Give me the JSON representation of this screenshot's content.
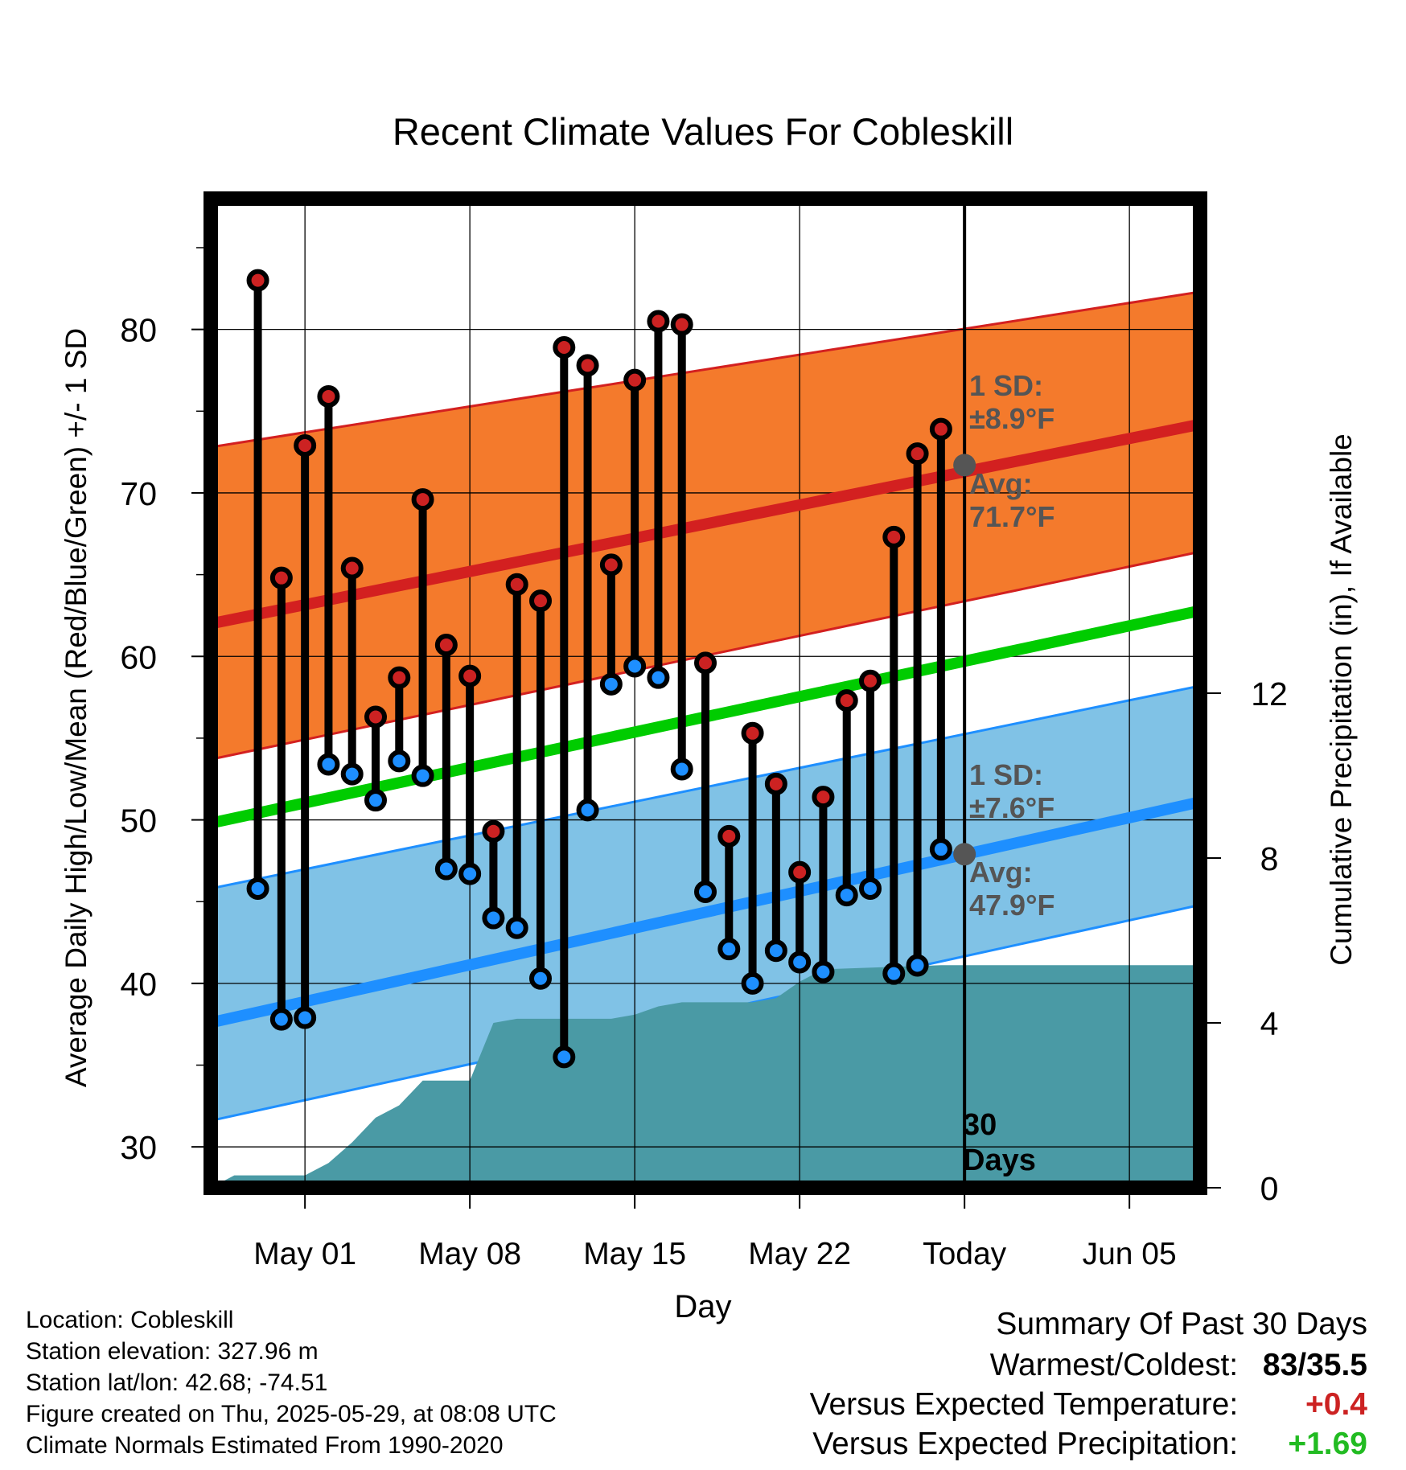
{
  "chart_data": {
    "type": "line",
    "title": "Recent Climate Values For Cobleskill",
    "xlabel": "Day",
    "ylabel": "Average Daily High/Low/Mean (Red/Blue/Green) +/- 1 SD",
    "y2label": "Cumulative Precipitation (in), If Available",
    "xlim": [
      "2025-04-27",
      "2025-06-08"
    ],
    "ylim": [
      27.5,
      88
    ],
    "y2lim": [
      0,
      24
    ],
    "x_ticks": [
      {
        "date": "2025-05-01",
        "label": "May 01"
      },
      {
        "date": "2025-05-08",
        "label": "May 08"
      },
      {
        "date": "2025-05-15",
        "label": "May 15"
      },
      {
        "date": "2025-05-22",
        "label": "May 22"
      },
      {
        "date": "2025-05-29",
        "label": "Today"
      },
      {
        "date": "2025-06-05",
        "label": "Jun 05"
      }
    ],
    "y_ticks": [
      30,
      40,
      50,
      60,
      70,
      80
    ],
    "y2_ticks": [
      0,
      4,
      8,
      12
    ],
    "grid": true,
    "today": "2025-05-29",
    "today_label": [
      "30",
      "Days"
    ],
    "dates": [
      "2025-04-30",
      "2025-05-01",
      "2025-05-02",
      "2025-05-03",
      "2025-05-04",
      "2025-05-05",
      "2025-05-06",
      "2025-05-07",
      "2025-05-08",
      "2025-05-09",
      "2025-05-10",
      "2025-05-11",
      "2025-05-12",
      "2025-05-13",
      "2025-05-14",
      "2025-05-15",
      "2025-05-16",
      "2025-05-17",
      "2025-05-18",
      "2025-05-19",
      "2025-05-20",
      "2025-05-21",
      "2025-05-22",
      "2025-05-23",
      "2025-05-24",
      "2025-05-25",
      "2025-05-26",
      "2025-05-27",
      "2025-05-28",
      "2025-05-29"
    ],
    "series": [
      {
        "name": "High",
        "color": "#cc2222",
        "values": [
          64.8,
          72.9,
          75.9,
          65.4,
          56.3,
          58.7,
          69.6,
          60.7,
          58.8,
          49.3,
          64.4,
          63.4,
          78.9,
          77.8,
          65.6,
          76.9,
          80.5,
          80.3,
          59.6,
          49.0,
          55.3,
          52.2,
          46.8,
          51.4,
          57.3,
          58.5,
          67.3,
          72.4,
          73.9,
          null
        ]
      },
      {
        "name": "Low",
        "color": "#1e8fff",
        "values": [
          37.8,
          37.9,
          53.4,
          52.8,
          51.2,
          53.6,
          52.7,
          47.0,
          46.7,
          44.0,
          43.4,
          40.3,
          35.5,
          50.6,
          58.3,
          59.4,
          58.7,
          53.1,
          45.6,
          42.1,
          40.0,
          42.0,
          41.3,
          40.7,
          45.4,
          45.8,
          40.6,
          41.1,
          48.2,
          null
        ]
      }
    ],
    "first_day": {
      "date": "2025-04-29",
      "high": 83.0,
      "low": 45.8
    },
    "normals": {
      "high_avg": {
        "start": 62.0,
        "end": 74.2,
        "color": "#d32020"
      },
      "high_sd": {
        "start": [
          53.7,
          72.8
        ],
        "end": [
          66.4,
          82.3
        ],
        "color": "#f47a2c"
      },
      "low_avg": {
        "start": 37.6,
        "end": 51.1,
        "color": "#1e8fff"
      },
      "low_sd": {
        "start": [
          31.6,
          45.8
        ],
        "end": [
          44.8,
          58.2
        ],
        "color": "#80c2e6"
      },
      "mean_avg": {
        "start": 49.8,
        "end": 62.8,
        "color": "#00cc00"
      }
    },
    "today_marks": {
      "high": {
        "value": 71.7,
        "label_sd": [
          "1 SD:",
          "±8.9°F"
        ],
        "label_avg": [
          "Avg:",
          "71.7°F"
        ]
      },
      "low": {
        "value": 47.9,
        "label_sd": [
          "1 SD:",
          "±7.6°F"
        ],
        "label_avg": [
          "Avg:",
          "47.9°F"
        ]
      }
    },
    "precip": {
      "color": "#4a9aa5",
      "points": [
        [
          "2025-04-27",
          0.0
        ],
        [
          "2025-04-28",
          0.3
        ],
        [
          "2025-05-01",
          0.3
        ],
        [
          "2025-05-02",
          0.6
        ],
        [
          "2025-05-03",
          1.1
        ],
        [
          "2025-05-04",
          1.7
        ],
        [
          "2025-05-05",
          2.0
        ],
        [
          "2025-05-06",
          2.6
        ],
        [
          "2025-05-08",
          2.6
        ],
        [
          "2025-05-09",
          4.0
        ],
        [
          "2025-05-10",
          4.1
        ],
        [
          "2025-05-14",
          4.1
        ],
        [
          "2025-05-15",
          4.2
        ],
        [
          "2025-05-16",
          4.4
        ],
        [
          "2025-05-17",
          4.5
        ],
        [
          "2025-05-20",
          4.5
        ],
        [
          "2025-05-21",
          4.6
        ],
        [
          "2025-05-22",
          5.0
        ],
        [
          "2025-05-23",
          5.3
        ],
        [
          "2025-05-28",
          5.4
        ],
        [
          "2025-06-08",
          5.4
        ]
      ]
    }
  },
  "location": {
    "location_line": "Location: Cobleskill",
    "elevation_line": "Station elevation: 327.96 m",
    "latlon_line": "Station lat/lon: 42.68; -74.51",
    "created_line": "Figure created on Thu, 2025-05-29, at 08:08 UTC",
    "normals_line": "Climate Normals Estimated From 1990-2020"
  },
  "summary": {
    "title": "Summary Of Past 30 Days",
    "warmest_label": "Warmest/Coldest:",
    "warmest_value": "83/35.5",
    "temp_label": "Versus Expected Temperature:",
    "temp_value": "+0.4",
    "temp_color": "#cc2222",
    "precip_label": "Versus Expected Precipitation:",
    "precip_value": "+1.69",
    "precip_color": "#22bb22"
  }
}
